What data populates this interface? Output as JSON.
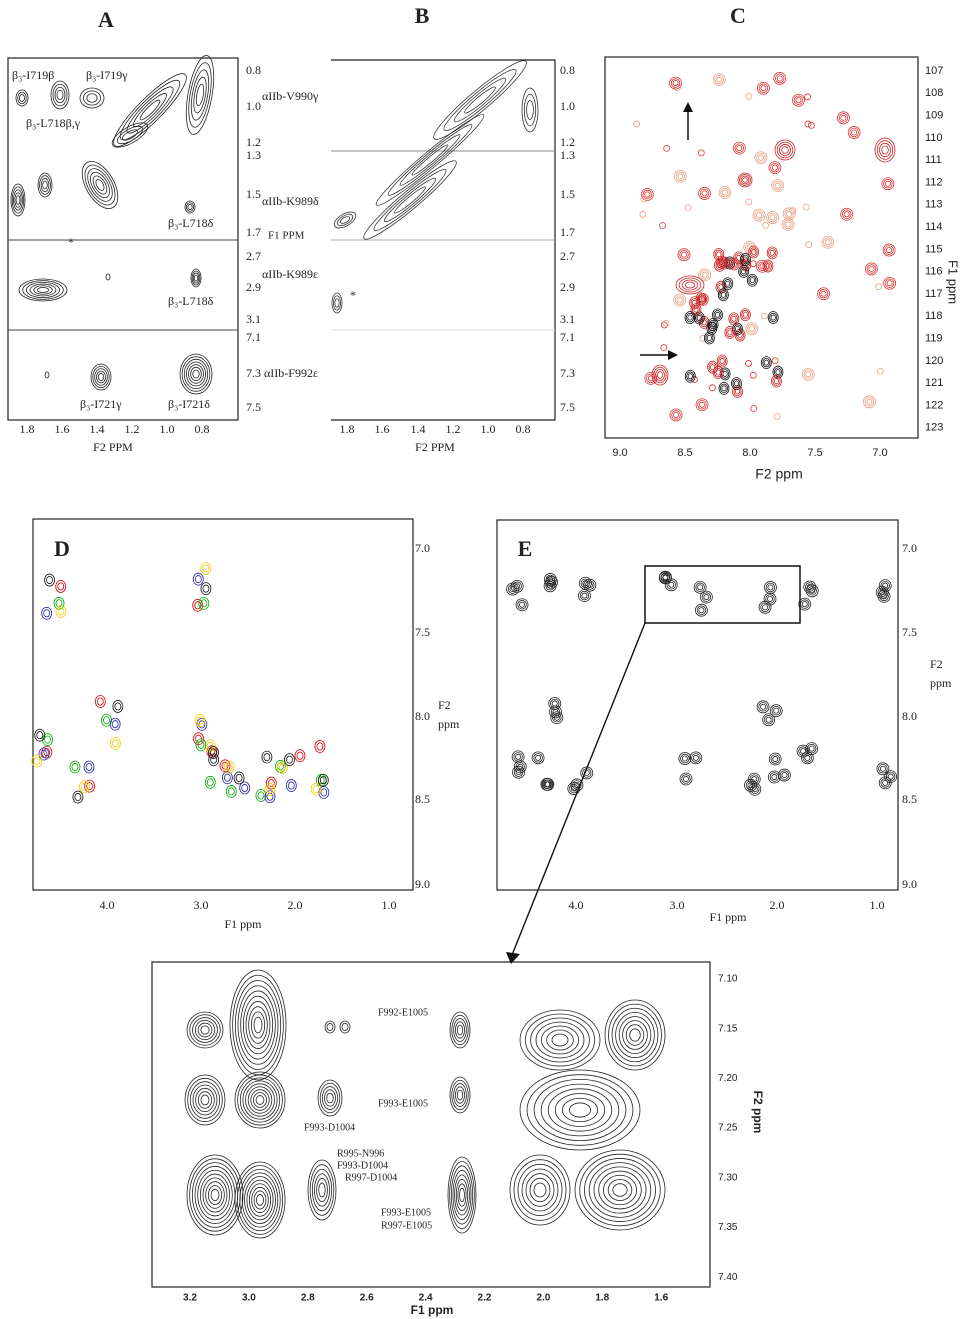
{
  "panels": {
    "a": {
      "label": "A",
      "annotations": [
        "β₃-I719β",
        "β₃-I719γ",
        "β₃-L718β,γ",
        "β₃-L718δ",
        "*",
        "β₃-L718δ",
        "β₃-I721γ",
        "β₃-I721δ"
      ],
      "y_ticks": [
        "0.8",
        "1.0",
        "1.2",
        "1.3",
        "1.5",
        "1.7",
        "2.7",
        "2.9",
        "3.1",
        "7.1",
        "7.3",
        "7.5"
      ],
      "x_ticks": [
        "1.8",
        "1.6",
        "1.4",
        "1.2",
        "1.0",
        "0.8"
      ],
      "x_title": "F2 PPM"
    },
    "middle_labels": [
      "αIIb-V990γ",
      "αIIb-K989δ",
      "F1  PPM",
      "αIIb-K989ε",
      "αIIb-F992ε"
    ],
    "b": {
      "label": "B",
      "annotations": [
        "*"
      ],
      "y_ticks": [
        "0.8",
        "1.0",
        "1.2",
        "1.3",
        "1.5",
        "1.7",
        "2.7",
        "2.9",
        "3.1",
        "7.1",
        "7.3",
        "7.5"
      ],
      "x_ticks": [
        "1.8",
        "1.6",
        "1.4",
        "1.2",
        "1.0",
        "0.8"
      ],
      "x_title": "F2 PPM"
    },
    "c": {
      "label": "C",
      "y_ticks": [
        "107",
        "108",
        "109",
        "110",
        "111",
        "112",
        "113",
        "114",
        "115",
        "116",
        "117",
        "118",
        "119",
        "120",
        "121",
        "122",
        "123"
      ],
      "y_title": "F1 ppm",
      "x_ticks": [
        "9.0",
        "8.5",
        "8.0",
        "7.5",
        "7.0"
      ],
      "x_title": "F2 ppm"
    },
    "d": {
      "label": "D",
      "y_ticks": [
        "7.0",
        "7.5",
        "8.0",
        "8.5",
        "9.0"
      ],
      "y_title": [
        "F2",
        "ppm"
      ],
      "x_ticks": [
        "4.0",
        "3.0",
        "2.0",
        "1.0"
      ],
      "x_title": "F1 ppm"
    },
    "e": {
      "label": "E",
      "y_ticks": [
        "7.0",
        "7.5",
        "8.0",
        "8.5",
        "9.0"
      ],
      "y_title": [
        "F2",
        "ppm"
      ],
      "x_ticks": [
        "4.0",
        "3.0",
        "2.0",
        "1.0"
      ],
      "x_title": "F1 ppm"
    },
    "zoom": {
      "annotations": [
        "F992-E1005",
        "F993-E1005",
        "F993-D1004",
        "R995-N996",
        "F993-D1004",
        "R997-D1004",
        "F993-E1005",
        "R997-E1005"
      ],
      "y_ticks": [
        "7.10",
        "7.15",
        "7.20",
        "7.25",
        "7.30",
        "7.35",
        "7.40"
      ],
      "y_title": "F2 ppm",
      "x_ticks": [
        "3.2",
        "3.0",
        "2.8",
        "2.6",
        "2.4",
        "2.2",
        "2.0",
        "1.8",
        "1.6"
      ],
      "x_title": "F1 ppm"
    }
  }
}
